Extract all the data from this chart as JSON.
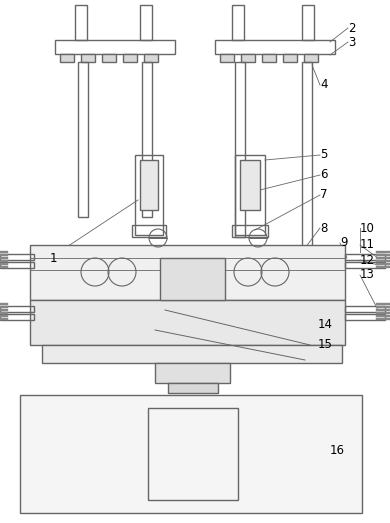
{
  "bg": "#ffffff",
  "lc": "#666666",
  "lw": 1.0,
  "fs": 8.5,
  "fig_w": 3.9,
  "fig_h": 5.23,
  "dpi": 100
}
